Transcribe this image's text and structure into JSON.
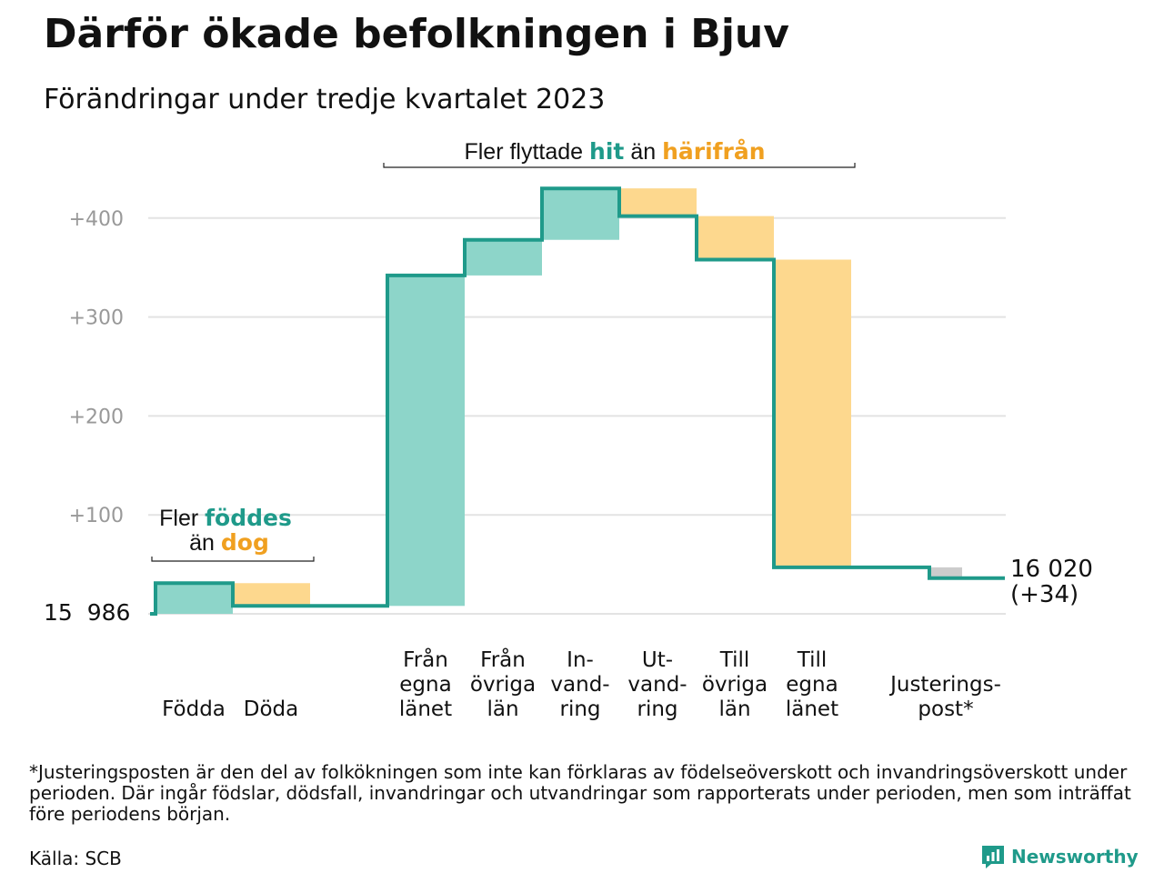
{
  "title": "Därför ökade befolkningen i Bjuv",
  "subtitle": "Förändringar under tredje kvartalet 2023",
  "annotations": {
    "births_pre": "Fler",
    "births_word": "föddes",
    "deaths_pre": "än",
    "deaths_word": "dog",
    "moves_pre": "Fler flyttade",
    "moves_hit": "hit",
    "moves_mid": "än",
    "moves_from": "härifrån"
  },
  "start_label": "15  986",
  "end_label_value": "16 020",
  "end_label_change": "(+34)",
  "footnote": "*Justeringsposten är den del av folkökningen som inte kan förklaras av födelseöverskott och invandringsöverskott under perioden. Där ingår födslar, dödsfall, invandringar och utvandringar som rapporterats under perioden, men som inträffat före periodens början.",
  "source": "Källa: SCB",
  "brand": "Newsworthy",
  "colors": {
    "increase": "#8dd5c9",
    "decrease": "#fdd88e",
    "adjustment": "#cccccc",
    "line": "#1f9a8a",
    "teal_text": "#1f9a8a",
    "orange_text": "#f0a020",
    "grid": "#e3e3e3",
    "tick": "#999999"
  },
  "chart_data": {
    "type": "waterfall",
    "start_value": 15986,
    "end_value": 16020,
    "yticks": [
      "+100",
      "+200",
      "+300",
      "+400"
    ],
    "ytick_values": [
      100,
      200,
      300,
      400
    ],
    "steps": [
      {
        "label": [
          "Födda"
        ],
        "delta": 31,
        "kind": "increase"
      },
      {
        "label": [
          "Döda"
        ],
        "delta": -23,
        "kind": "decrease"
      },
      {
        "label": [
          "Från",
          "egna",
          "länet"
        ],
        "delta": 334,
        "kind": "increase"
      },
      {
        "label": [
          "Från",
          "övriga",
          "län"
        ],
        "delta": 36,
        "kind": "increase"
      },
      {
        "label": [
          "In-",
          "vand-",
          "ring"
        ],
        "delta": 52,
        "kind": "increase"
      },
      {
        "label": [
          "Ut-",
          "vand-",
          "ring"
        ],
        "delta": -28,
        "kind": "decrease"
      },
      {
        "label": [
          "Till",
          "övriga",
          "län"
        ],
        "delta": -44,
        "kind": "decrease"
      },
      {
        "label": [
          "Till",
          "egna",
          "länet"
        ],
        "delta": -311,
        "kind": "decrease"
      },
      {
        "label": [
          "Justerings-",
          "post*"
        ],
        "delta": -11,
        "kind": "adjustment"
      }
    ]
  }
}
